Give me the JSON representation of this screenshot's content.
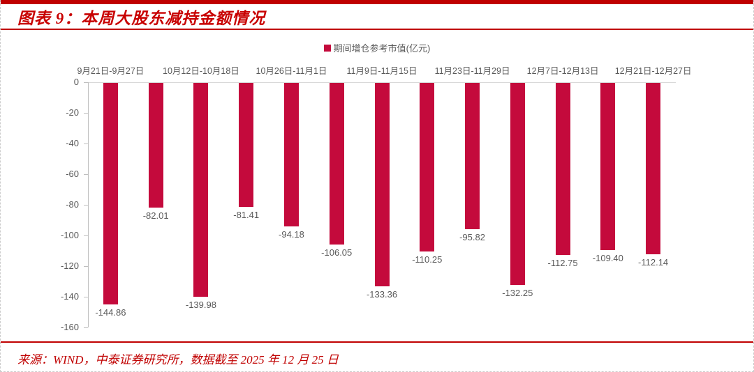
{
  "header": {
    "title": "图表 9：本周大股东减持金额情况"
  },
  "footer": {
    "source": "来源：WIND，中泰证券研究所，数据截至 2025 年 12 月 25 日"
  },
  "colors": {
    "accent_red": "#C00000",
    "title_red": "#C80000",
    "bar_red": "#C40A3C",
    "label_gray": "#595959",
    "axis_line": "#BFBFBF",
    "zero_line": "#D9D9D9"
  },
  "chart_data": {
    "type": "bar",
    "title": "",
    "legend": "期间增仓参考市值(亿元)",
    "legend_position": "top-center",
    "categories": [
      "9月21日-9月27日",
      "",
      "10月12日-10月18日",
      "",
      "10月26日-11月1日",
      "",
      "11月9日-11月15日",
      "",
      "11月23日-11月29日",
      "",
      "12月7日-12月13日",
      "",
      "12月21日-12月27日"
    ],
    "values": [
      -144.86,
      -82.01,
      -139.98,
      -81.41,
      -94.18,
      -106.05,
      -133.36,
      -110.25,
      -95.82,
      -132.25,
      -112.75,
      -109.4,
      -112.14
    ],
    "data_labels": [
      "-144.86",
      "-82.01",
      "-139.98",
      "-81.41",
      "-94.18",
      "-106.05",
      "-133.36",
      "-110.25",
      "-95.82",
      "-132.25",
      "-112.75",
      "-109.40",
      "-112.14"
    ],
    "y_ticks": [
      0,
      -20,
      -40,
      -60,
      -80,
      -100,
      -120,
      -140,
      -160
    ],
    "ylim": [
      -160,
      0
    ],
    "xlabel": "",
    "ylabel": "",
    "grid": false
  }
}
